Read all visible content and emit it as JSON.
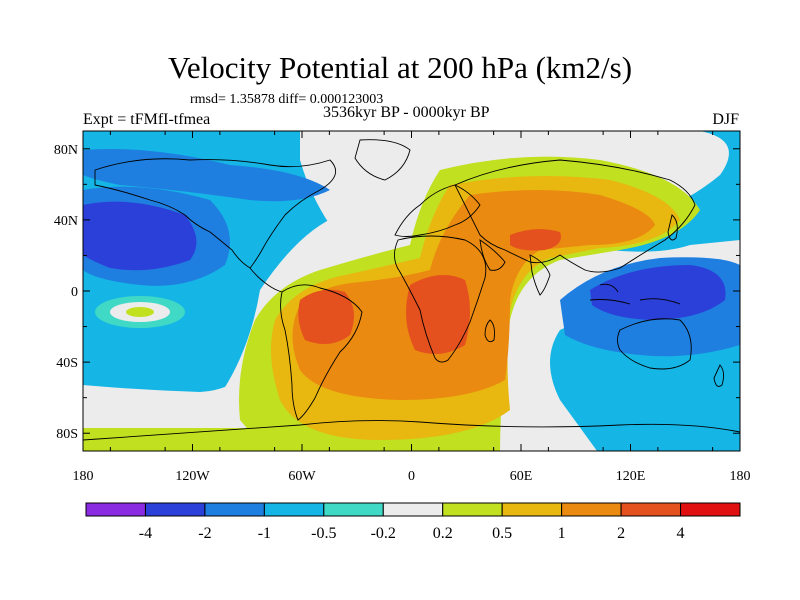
{
  "title": "Velocity Potential at 200 hPa (km2/s)",
  "rmsd_text": "rmsd= 1.35878 diff= 0.000123003",
  "left_label": "Expt = tFMfI-tfmea",
  "center_label": "3536kyr BP - 0000kyr BP",
  "right_label": "DJF",
  "x_ticks": [
    "180",
    "120W",
    "60W",
    "0",
    "60E",
    "120E",
    "180"
  ],
  "y_ticks": [
    "80N",
    "40N",
    "0",
    "40S",
    "80S"
  ],
  "colorbar": {
    "colors": [
      "#8a2be2",
      "#2b3fd9",
      "#1f7fe0",
      "#15b5e6",
      "#3fd9c5",
      "#ececec",
      "#c0e020",
      "#e8b810",
      "#ea8a10",
      "#e4501e",
      "#e01010"
    ],
    "labels": [
      "-4",
      "-2",
      "-1",
      "-0.5",
      "-0.2",
      "0.2",
      "0.5",
      "1",
      "2",
      "4"
    ]
  },
  "map_colors": {
    "ocean_background": "#15b5e6",
    "deep_negative": "#2b3fd9",
    "mid_negative": "#1f7fe0",
    "weak_negative": "#3fd9c5",
    "near_zero": "#ececec",
    "weak_positive": "#c0e020",
    "positive": "#e8b810",
    "strong_positive": "#ea8a10",
    "very_strong_positive": "#e4501e",
    "coastline": "#000000"
  }
}
